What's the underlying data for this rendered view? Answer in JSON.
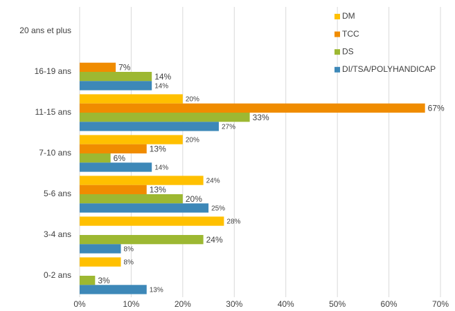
{
  "chart_data": {
    "type": "hbar",
    "categories": [
      "20 ans et plus",
      "16-19 ans",
      "11-15 ans",
      "7-10 ans",
      "5-6 ans",
      "3-4 ans",
      "0-2 ans"
    ],
    "series": [
      {
        "name": "DM",
        "color": "#FFC000",
        "values": [
          null,
          null,
          20,
          20,
          24,
          28,
          8
        ],
        "value_labels": [
          null,
          null,
          "20%",
          "20%",
          "24%",
          "28%",
          "8%"
        ]
      },
      {
        "name": "TCC",
        "color": "#F08C00",
        "values": [
          null,
          7,
          67,
          13,
          13,
          null,
          null
        ],
        "value_labels": [
          null,
          "7%",
          "67%",
          "13%",
          "13%",
          null,
          null
        ]
      },
      {
        "name": "DS",
        "color": "#9DB832",
        "values": [
          null,
          14,
          33,
          6,
          20,
          24,
          3
        ],
        "value_labels": [
          null,
          "14%",
          "33%",
          "6%",
          "20%",
          "24%",
          "3%"
        ]
      },
      {
        "name": "DI/TSA/POLYHANDICAP",
        "color": "#3D88B8",
        "values": [
          null,
          14,
          27,
          14,
          25,
          8,
          13
        ],
        "value_labels": [
          null,
          "14%",
          "27%",
          "14%",
          "25%",
          "8%",
          "13%"
        ]
      }
    ],
    "xlim": [
      0,
      70
    ],
    "xticks": [
      {
        "value": 0,
        "label": "0%"
      },
      {
        "value": 10,
        "label": "10%"
      },
      {
        "value": 20,
        "label": "20%"
      },
      {
        "value": 30,
        "label": "30%"
      },
      {
        "value": 40,
        "label": "40%"
      },
      {
        "value": 50,
        "label": "50%"
      },
      {
        "value": 60,
        "label": "60%"
      },
      {
        "value": 70,
        "label": "70%"
      }
    ],
    "grid": true,
    "legend": "top-right"
  }
}
